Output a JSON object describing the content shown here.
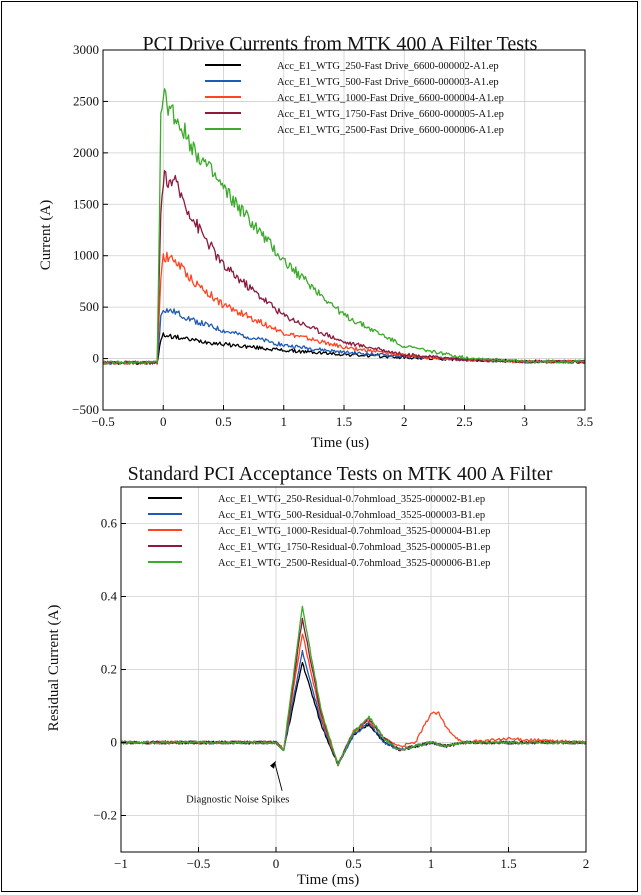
{
  "chart_data": [
    {
      "type": "line",
      "title": "PCI Drive Currents from MTK  400 A Filter Tests",
      "xlabel": "Time (us)",
      "ylabel": "Current (A)",
      "xlim": [
        -0.5,
        3.5
      ],
      "ylim": [
        -500,
        3000
      ],
      "xticks": [
        "−0.5",
        "0",
        "0.5",
        "1",
        "1.5",
        "2",
        "2.5",
        "3",
        "3.5"
      ],
      "xtick_values": [
        -0.5,
        0,
        0.5,
        1,
        1.5,
        2,
        2.5,
        3,
        3.5
      ],
      "yticks": [
        "−500",
        "0",
        "500",
        "1000",
        "1500",
        "2000",
        "2500",
        "3000"
      ],
      "ytick_values": [
        -500,
        0,
        500,
        1000,
        1500,
        2000,
        2500,
        3000
      ],
      "grid": true,
      "legend_position": "top-right",
      "series": [
        {
          "name": "Acc_E1_WTG_250-Fast Drive_6600-000002-A1.ep",
          "color": "#000000",
          "x": [
            -0.5,
            -0.05,
            -0.02,
            0.0,
            0.1,
            0.25,
            0.5,
            1.0,
            1.5,
            2.0,
            2.5,
            3.0,
            3.5
          ],
          "y": [
            -40,
            -40,
            180,
            230,
            210,
            180,
            140,
            80,
            40,
            10,
            -10,
            -30,
            -30
          ]
        },
        {
          "name": "Acc_E1_WTG_500-Fast Drive_6600-000003-A1.ep",
          "color": "#1f5bb5",
          "x": [
            -0.5,
            -0.05,
            -0.02,
            0.0,
            0.1,
            0.25,
            0.5,
            1.0,
            1.5,
            2.0,
            2.5,
            3.0,
            3.5
          ],
          "y": [
            -40,
            -40,
            400,
            480,
            450,
            370,
            270,
            130,
            60,
            20,
            -10,
            -30,
            -30
          ]
        },
        {
          "name": "Acc_E1_WTG_1000-Fast Drive_6600-000004-A1.ep",
          "color": "#ff4422",
          "x": [
            -0.5,
            -0.05,
            -0.02,
            0.0,
            0.1,
            0.25,
            0.5,
            1.0,
            1.5,
            2.0,
            2.5,
            3.0,
            3.5
          ],
          "y": [
            -40,
            -40,
            800,
            1000,
            950,
            750,
            520,
            250,
            110,
            30,
            -10,
            -30,
            -30
          ]
        },
        {
          "name": "Acc_E1_WTG_1750-Fast Drive_6600-000005-A1.ep",
          "color": "#8b1a3c",
          "x": [
            -0.5,
            -0.05,
            -0.02,
            0.0,
            0.1,
            0.25,
            0.5,
            1.0,
            1.5,
            2.0,
            2.5,
            3.0,
            3.5
          ],
          "y": [
            -40,
            -40,
            1400,
            1750,
            1700,
            1350,
            900,
            420,
            160,
            40,
            -10,
            -30,
            -30
          ]
        },
        {
          "name": "Acc_E1_WTG_2500-Fast Drive_6600-000006-A1.ep",
          "color": "#3caa2a",
          "x": [
            -0.5,
            -0.05,
            -0.02,
            0.0,
            0.1,
            0.25,
            0.5,
            1.0,
            1.5,
            2.0,
            2.5,
            3.0,
            3.5
          ],
          "y": [
            -40,
            -40,
            2300,
            2550,
            2350,
            2050,
            1650,
            950,
            420,
            120,
            10,
            -30,
            -30
          ]
        }
      ]
    },
    {
      "type": "line",
      "title": "Standard PCI Acceptance Tests on MTK  400 A Filter",
      "xlabel": "Time (ms)",
      "ylabel": "Residual Current (A)",
      "xlim": [
        -1,
        2
      ],
      "ylim": [
        -0.3,
        0.7
      ],
      "xticks": [
        "−1",
        "−0.5",
        "0",
        "0.5",
        "1",
        "1.5",
        "2"
      ],
      "xtick_values": [
        -1,
        -0.5,
        0,
        0.5,
        1,
        1.5,
        2
      ],
      "yticks": [
        "−0.2",
        "0",
        "0.2",
        "0.4",
        "0.6"
      ],
      "ytick_values": [
        -0.2,
        0,
        0.2,
        0.4,
        0.6
      ],
      "grid": true,
      "legend_position": "top-right",
      "annotations": [
        {
          "text": "Diagnostic Noise Spikes",
          "x": -0.58,
          "y": -0.165,
          "arrow_to": [
            0.0,
            -0.05
          ]
        }
      ],
      "series": [
        {
          "name": "Acc_E1_WTG_250-Residual-0.7ohmload_3525-000002-B1.ep",
          "color": "#000000",
          "x": [
            -1,
            0,
            0.05,
            0.17,
            0.29,
            0.4,
            0.5,
            0.6,
            0.7,
            0.8,
            0.9,
            1.0,
            1.1,
            1.2,
            1.5,
            2.0
          ],
          "y": [
            0,
            0,
            -0.02,
            0.22,
            0.05,
            -0.06,
            0.02,
            0.05,
            0.0,
            -0.02,
            -0.01,
            0.0,
            -0.01,
            0.0,
            0.0,
            0.0
          ]
        },
        {
          "name": "Acc_E1_WTG_500-Residual-0.7ohmload_3525-000003-B1.ep",
          "color": "#1f5bb5",
          "x": [
            -1,
            0,
            0.05,
            0.17,
            0.29,
            0.4,
            0.5,
            0.6,
            0.7,
            0.8,
            0.9,
            1.0,
            1.1,
            1.2,
            1.5,
            2.0
          ],
          "y": [
            0,
            0,
            -0.02,
            0.25,
            0.06,
            -0.06,
            0.02,
            0.055,
            0.0,
            -0.02,
            -0.01,
            0.0,
            -0.01,
            0.0,
            0.0,
            0.0
          ]
        },
        {
          "name": "Acc_E1_WTG_1000-Residual-0.7ohmload_3525-000004-B1.ep",
          "color": "#ff4422",
          "x": [
            -1,
            0,
            0.05,
            0.17,
            0.29,
            0.4,
            0.5,
            0.6,
            0.7,
            0.8,
            0.9,
            1.0,
            1.05,
            1.1,
            1.2,
            1.5,
            2.0
          ],
          "y": [
            0,
            0,
            -0.02,
            0.3,
            0.07,
            -0.06,
            0.03,
            0.06,
            0.01,
            -0.01,
            0.0,
            0.08,
            0.08,
            0.04,
            0.0,
            0.01,
            0.0
          ]
        },
        {
          "name": "Acc_E1_WTG_1750-Residual-0.7ohmload_3525-000005-B1.ep",
          "color": "#8b1a3c",
          "x": [
            -1,
            0,
            0.05,
            0.17,
            0.29,
            0.4,
            0.5,
            0.6,
            0.7,
            0.8,
            0.9,
            1.0,
            1.1,
            1.2,
            1.5,
            2.0
          ],
          "y": [
            0,
            0,
            -0.02,
            0.34,
            0.08,
            -0.06,
            0.03,
            0.065,
            0.01,
            -0.02,
            -0.01,
            0.0,
            -0.01,
            0.0,
            0.0,
            0.0
          ]
        },
        {
          "name": "Acc_E1_WTG_2500-Residual-0.7ohmload_3525-000006-B1.ep",
          "color": "#3caa2a",
          "x": [
            -1,
            0,
            0.05,
            0.17,
            0.29,
            0.4,
            0.5,
            0.6,
            0.7,
            0.8,
            0.9,
            1.0,
            1.1,
            1.2,
            1.5,
            2.0
          ],
          "y": [
            0,
            0,
            -0.02,
            0.37,
            0.09,
            -0.06,
            0.03,
            0.07,
            0.01,
            -0.02,
            -0.01,
            0.0,
            -0.01,
            0.0,
            0.0,
            0.0
          ]
        }
      ]
    }
  ]
}
